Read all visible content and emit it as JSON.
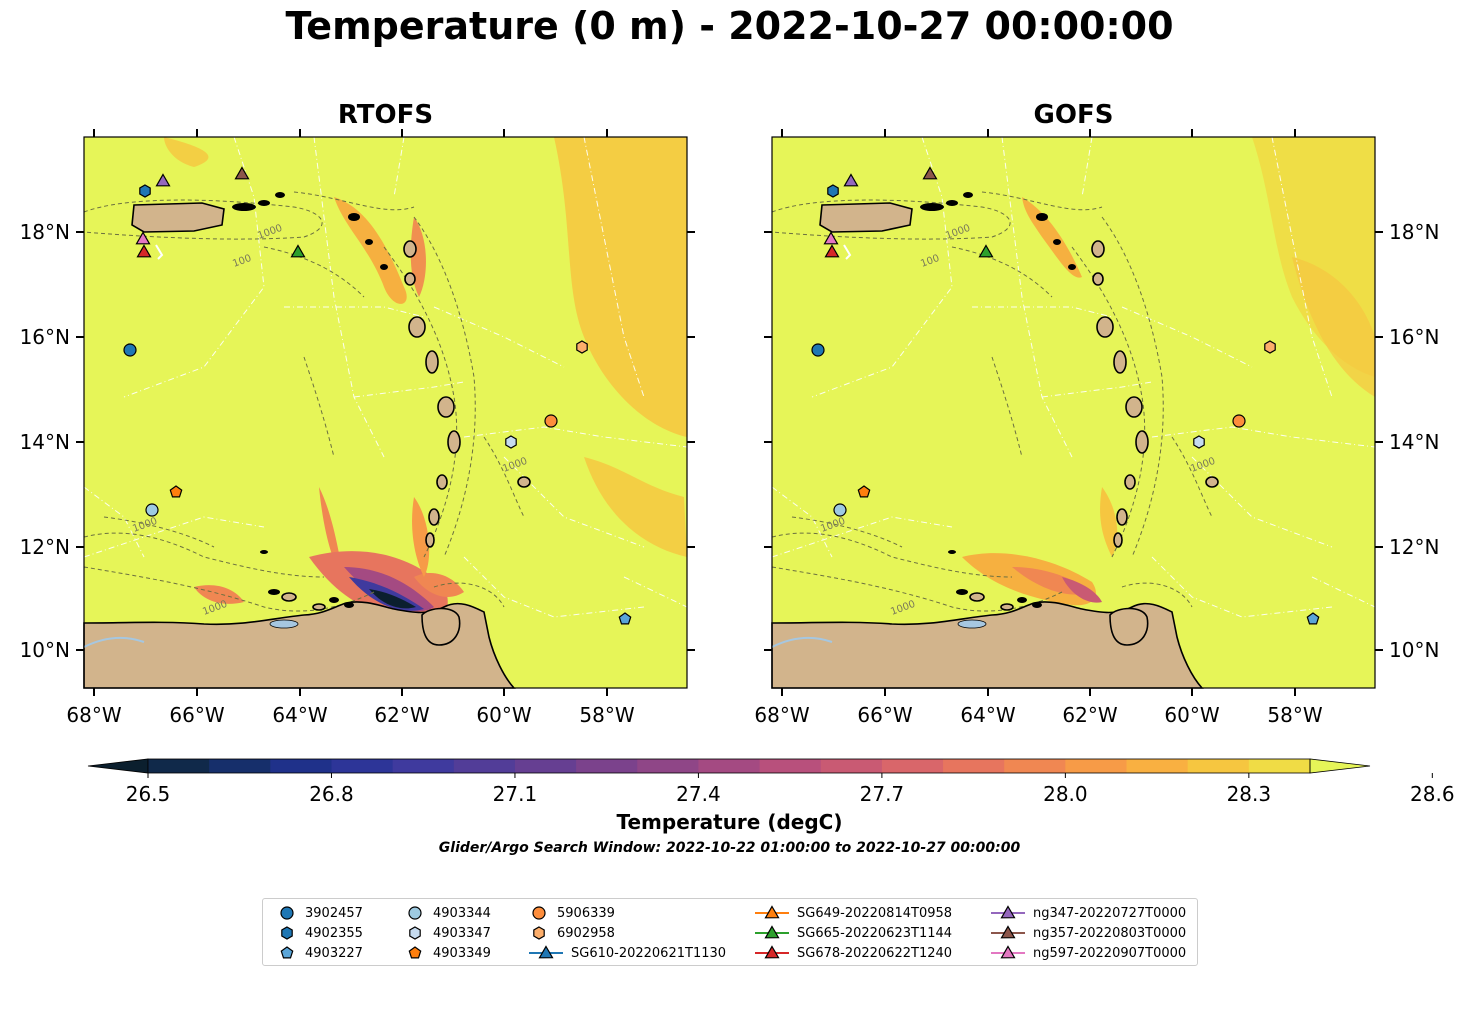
{
  "title": "Temperature (0 m) - 2022-10-27 00:00:00",
  "panels": [
    {
      "title": "RTOFS"
    },
    {
      "title": "GOFS"
    }
  ],
  "x_ticks": [
    "68°W",
    "66°W",
    "64°W",
    "62°W",
    "60°W",
    "58°W"
  ],
  "y_ticks": [
    "18°N",
    "16°N",
    "14°N",
    "12°N",
    "10°N"
  ],
  "depth_labels": [
    "1000",
    "100",
    "1000",
    "1000",
    "1000"
  ],
  "colorbar": {
    "ticks": [
      "26.5",
      "26.8",
      "27.1",
      "27.4",
      "27.7",
      "28.0",
      "28.3",
      "28.6"
    ],
    "label": "Temperature (degC)",
    "subtitle": "Glider/Argo Search Window: 2022-10-22 01:00:00 to 2022-10-27 00:00:00",
    "colors": [
      "#0b1f2e",
      "#10294a",
      "#162f6b",
      "#1f318a",
      "#2d3598",
      "#3f3a9e",
      "#523d98",
      "#663f92",
      "#7b428c",
      "#8f4687",
      "#a44a82",
      "#b8507c",
      "#c95a73",
      "#d9666a",
      "#e7755e",
      "#f08752",
      "#f79b47",
      "#f9b041",
      "#f6c640",
      "#f0dc45",
      "#e6f558"
    ]
  },
  "legend": {
    "items": [
      {
        "label": "3902457",
        "marker": "circle",
        "color": "#1f77b4"
      },
      {
        "label": "4902355",
        "marker": "hexagon",
        "color": "#1f77b4"
      },
      {
        "label": "4903227",
        "marker": "pentagon",
        "color": "#5aa5d8"
      },
      {
        "label": "4903344",
        "marker": "circle",
        "color": "#9ecae1"
      },
      {
        "label": "4903347",
        "marker": "hexagon",
        "color": "#c6dbef"
      },
      {
        "label": "4903349",
        "marker": "pentagon",
        "color": "#ff7f0e"
      },
      {
        "label": "5906339",
        "marker": "circle",
        "color": "#fd8d3c"
      },
      {
        "label": "6902958",
        "marker": "hexagon",
        "color": "#fdae6b"
      },
      {
        "label": "SG610-20220621T1130",
        "marker": "triangle-line",
        "color": "#1f77b4"
      },
      {
        "label": "SG649-20220814T0958",
        "marker": "triangle-line",
        "color": "#ff7f0e"
      },
      {
        "label": "SG665-20220623T1144",
        "marker": "triangle-line",
        "color": "#2ca02c"
      },
      {
        "label": "SG678-20220622T1240",
        "marker": "triangle-line",
        "color": "#d62728"
      },
      {
        "label": "ng347-20220727T0000",
        "marker": "triangle-line",
        "color": "#9467bd"
      },
      {
        "label": "ng357-20220803T0000",
        "marker": "triangle-line",
        "color": "#8c564b"
      },
      {
        "label": "ng597-20220907T0000",
        "marker": "triangle-line",
        "color": "#e377c2"
      }
    ]
  },
  "colors": {
    "sea_warm": "#e6f558",
    "land": "#d2b48c",
    "lake": "#a6c7e0",
    "contour": "#6b7040"
  }
}
